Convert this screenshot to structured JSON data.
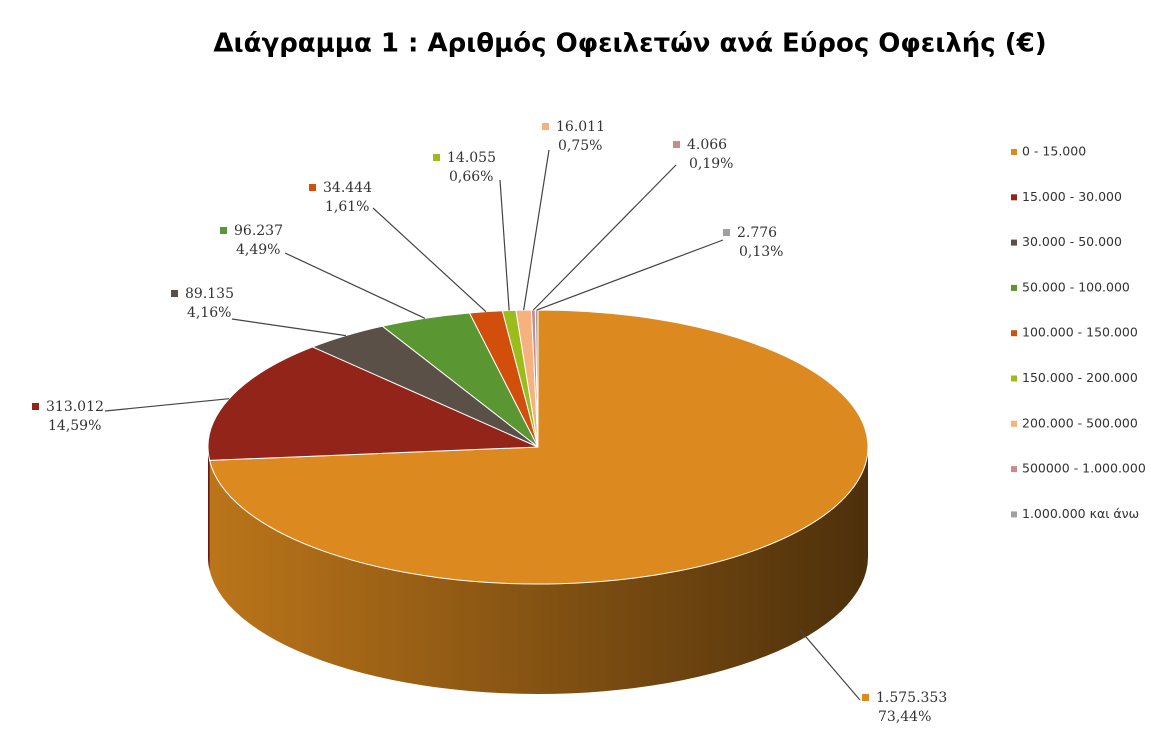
{
  "chart_data": {
    "type": "pie3d",
    "title": "Διάγραμμα 1 : Αριθμός Οφειλετών ανά Εύρος Οφειλής (€)",
    "categories": [
      "0 - 15.000",
      "15.000 - 30.000",
      "30.000 - 50.000",
      "50.000 - 100.000",
      "100.000 - 150.000",
      "150.000 - 200.000",
      "200.000 - 500.000",
      "500000 - 1.000.000",
      "1.000.000 και άνω"
    ],
    "values": [
      1575353,
      313012,
      89135,
      96237,
      34444,
      14055,
      16011,
      4066,
      2776
    ],
    "value_labels": [
      "1.575.353",
      "313.012",
      "89.135",
      "96.237",
      "34.444",
      "14.055",
      "16.011",
      "4.066",
      "2.776"
    ],
    "percents": [
      73.44,
      14.59,
      4.16,
      4.49,
      1.61,
      0.66,
      0.75,
      0.19,
      0.13
    ],
    "percent_labels": [
      "73,44%",
      "14,59%",
      "4,16%",
      "4,49%",
      "1,61%",
      "0,66%",
      "0,75%",
      "0,19%",
      "0,13%"
    ],
    "colors": [
      "#dc8a1f",
      "#92241a",
      "#5a5048",
      "#5a9632",
      "#d24e0b",
      "#9cbc1c",
      "#f6b27e",
      "#c98a8a",
      "#a0a0a0"
    ],
    "legend": "right"
  }
}
